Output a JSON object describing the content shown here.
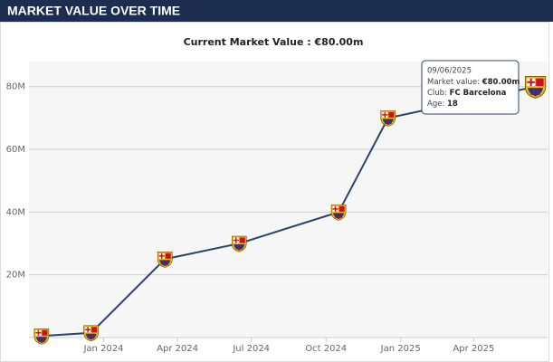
{
  "header": {
    "title": "MARKET VALUE OVER TIME"
  },
  "chart_data": {
    "type": "line",
    "title": "Current Market Value : €80.00m",
    "x": [
      "2023-10",
      "2023-12",
      "2024-03",
      "2024-06",
      "2024-10",
      "2024-12",
      "2025-06"
    ],
    "series": [
      {
        "name": "Market value",
        "color": "#2c4466",
        "values": [
          0.5,
          1.5,
          25,
          30,
          40,
          70,
          80
        ]
      }
    ],
    "xlim": [
      "2023-10",
      "2025-07"
    ],
    "xticks": [
      {
        "value": "2024-01",
        "label": "Jan 2024"
      },
      {
        "value": "2024-04",
        "label": "Apr 2024"
      },
      {
        "value": "2024-07",
        "label": "Jul 2024"
      },
      {
        "value": "2024-10",
        "label": "Oct 2024"
      },
      {
        "value": "2025-01",
        "label": "Jan 2025"
      },
      {
        "value": "2025-04",
        "label": "Apr 2025"
      }
    ],
    "ylim": [
      0,
      88
    ],
    "yticks": [
      {
        "value": 20,
        "label": "20M"
      },
      {
        "value": 40,
        "label": "40M"
      },
      {
        "value": 60,
        "label": "60M"
      },
      {
        "value": 80,
        "label": "80M"
      }
    ],
    "grid": true,
    "tooltip": {
      "date": "09/06/2025",
      "market_value_label": "Market value:",
      "market_value": "€80.00m",
      "club_label": "Club:",
      "club": "FC Barcelona",
      "age_label": "Age:",
      "age": "18"
    }
  }
}
